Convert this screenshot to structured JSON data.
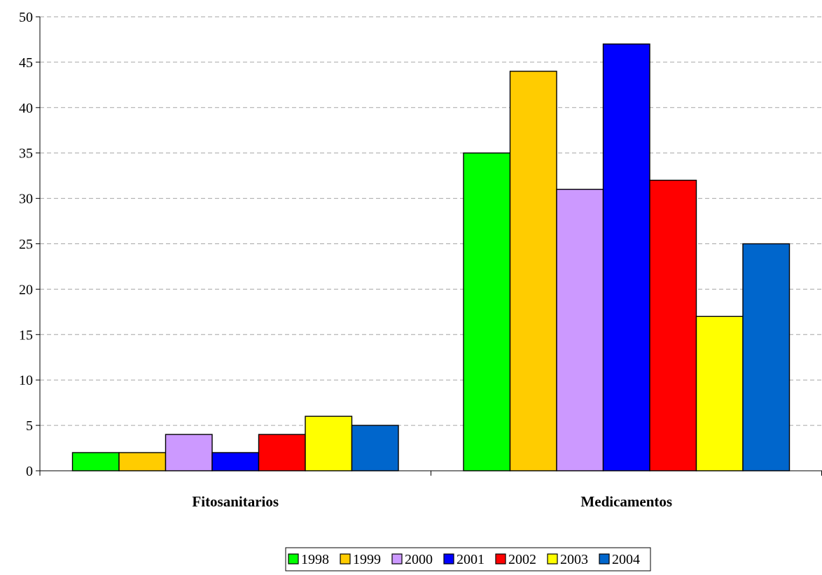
{
  "chart_data": {
    "type": "bar",
    "title": "",
    "xlabel": "",
    "ylabel": "",
    "categories": [
      "Fitosanitarios",
      "Medicamentos"
    ],
    "series": [
      {
        "name": "1998",
        "color": "#00ff00",
        "values": [
          2,
          35
        ]
      },
      {
        "name": "1999",
        "color": "#ffcc00",
        "values": [
          2,
          44
        ]
      },
      {
        "name": "2000",
        "color": "#cc99ff",
        "values": [
          4,
          31
        ]
      },
      {
        "name": "2001",
        "color": "#0000ff",
        "values": [
          2,
          47
        ]
      },
      {
        "name": "2002",
        "color": "#ff0000",
        "values": [
          4,
          32
        ]
      },
      {
        "name": "2003",
        "color": "#ffff00",
        "values": [
          6,
          17
        ]
      },
      {
        "name": "2004",
        "color": "#0066cc",
        "values": [
          5,
          25
        ]
      }
    ],
    "ylim": [
      0,
      50
    ],
    "yticks": [
      0,
      5,
      10,
      15,
      20,
      25,
      30,
      35,
      40,
      45,
      50
    ],
    "grid": "horizontal dashed",
    "legend": "bottom-center"
  }
}
